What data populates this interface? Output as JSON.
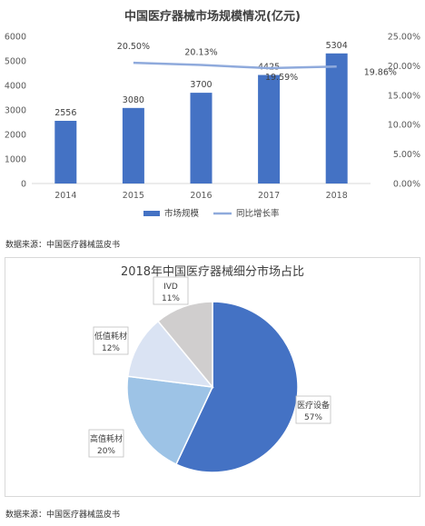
{
  "chart_data": [
    {
      "type": "bar",
      "title": "中国医疗器械市场规模情况(亿元)",
      "categories": [
        "2014",
        "2015",
        "2016",
        "2017",
        "2018"
      ],
      "series": [
        {
          "name": "市场规模",
          "type": "bar",
          "axis": "left",
          "values": [
            2556,
            3080,
            3700,
            4425,
            5304
          ],
          "labels": [
            "2556",
            "3080",
            "3700",
            "4425",
            "5304"
          ]
        },
        {
          "name": "同比增长率",
          "type": "line",
          "axis": "right",
          "values": [
            20.5,
            20.13,
            19.59,
            19.86
          ],
          "x": [
            "2015",
            "2016",
            "2017",
            "2018"
          ],
          "labels": [
            "20.50%",
            "20.13%",
            "19.59%",
            "19.86%"
          ]
        }
      ],
      "y_left": {
        "ylim": [
          0,
          6000
        ],
        "ticks": [
          "0",
          "1000",
          "2000",
          "3000",
          "4000",
          "5000",
          "6000"
        ]
      },
      "y_right": {
        "ylim": [
          0,
          25
        ],
        "ticks": [
          "0.00%",
          "5.00%",
          "10.00%",
          "15.00%",
          "20.00%",
          "25.00%"
        ]
      },
      "legend": "bottom",
      "grid": false,
      "colors": {
        "bar": "#4472c4",
        "line": "#8faadc"
      }
    },
    {
      "type": "pie",
      "title": "2018年中国医疗器械细分市场占比",
      "slices": [
        {
          "label": "医疗设备",
          "value": 57,
          "pct": "57%",
          "color": "#4472c4"
        },
        {
          "label": "高值耗材",
          "value": 20,
          "pct": "20%",
          "color": "#9dc3e6"
        },
        {
          "label": "低值耗材",
          "value": 12,
          "pct": "12%",
          "color": "#dae3f3"
        },
        {
          "label": "IVD",
          "value": 11,
          "pct": "11%",
          "color": "#d0cece"
        }
      ],
      "legend": "none"
    }
  ],
  "source_note_1": "数据来源：中国医疗器械蓝皮书",
  "source_note_2": "数据来源：中国医疗器械蓝皮书"
}
